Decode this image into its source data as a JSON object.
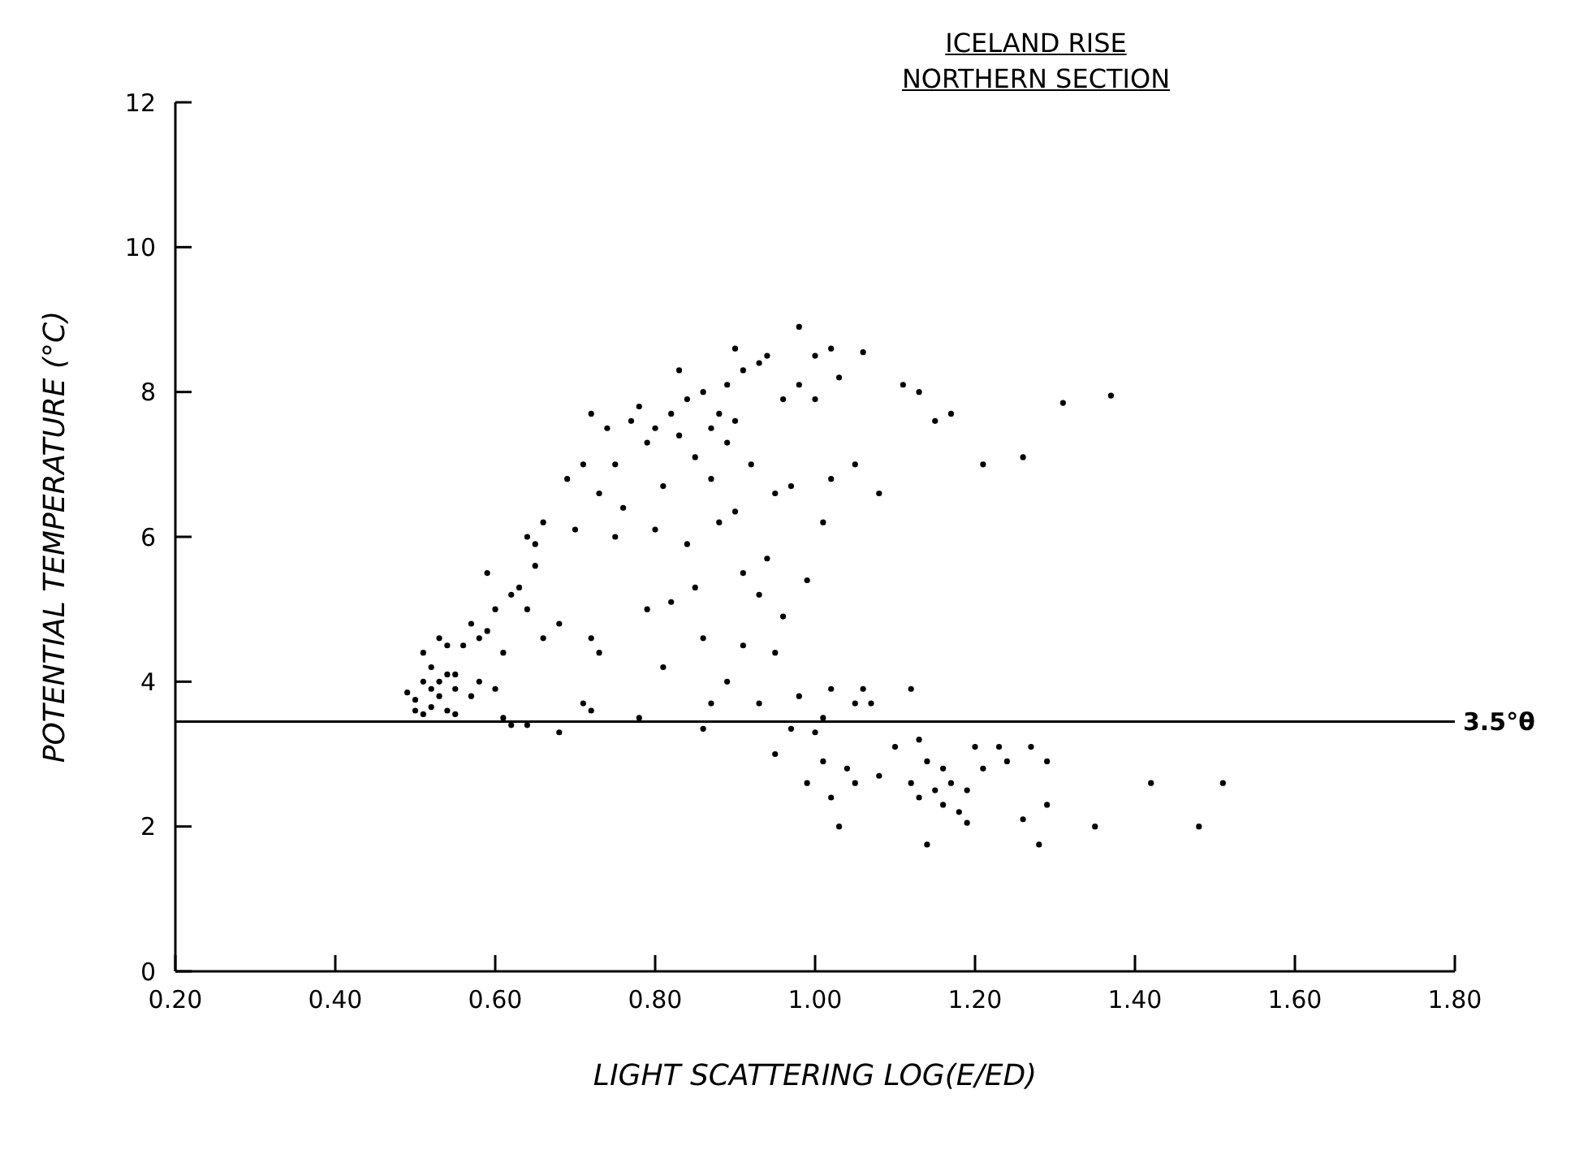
{
  "chart_data": {
    "type": "scatter",
    "title": "ICELAND RISE",
    "subtitle": "NORTHERN SECTION",
    "xlabel": "LIGHT SCATTERING    LOG(E/ED)",
    "ylabel": "POTENTIAL TEMPERATURE (°C)",
    "marker": "circle",
    "xlim": [
      0.2,
      1.8
    ],
    "xticks": [
      {
        "value": 0.2,
        "label": "0.20"
      },
      {
        "value": 0.4,
        "label": "0.40"
      },
      {
        "value": 0.6,
        "label": "0.60"
      },
      {
        "value": 0.8,
        "label": "0.80"
      },
      {
        "value": 1.0,
        "label": "1.00"
      },
      {
        "value": 1.2,
        "label": "1.20"
      },
      {
        "value": 1.4,
        "label": "1.40"
      },
      {
        "value": 1.6,
        "label": "1.60"
      },
      {
        "value": 1.8,
        "label": "1.80"
      }
    ],
    "ylim": [
      0,
      12
    ],
    "yticks": [
      0,
      2,
      4,
      6,
      8,
      10,
      12
    ],
    "ref_lines": [
      {
        "axis": "y",
        "value": 3.45,
        "label": "3.5°θ",
        "color": "#000000"
      }
    ],
    "series": [
      {
        "color": "#000000",
        "x": [
          0.49,
          0.5,
          0.5,
          0.51,
          0.51,
          0.51,
          0.52,
          0.52,
          0.52,
          0.53,
          0.53,
          0.53,
          0.54,
          0.54,
          0.54,
          0.55,
          0.55,
          0.55,
          0.56,
          0.57,
          0.57,
          0.58,
          0.58,
          0.59,
          0.59,
          0.6,
          0.6,
          0.61,
          0.61,
          0.62,
          0.62,
          0.63,
          0.64,
          0.64,
          0.64,
          0.65,
          0.65,
          0.66,
          0.66,
          0.68,
          0.68,
          0.69,
          0.7,
          0.71,
          0.71,
          0.72,
          0.72,
          0.72,
          0.73,
          0.73,
          0.74,
          0.75,
          0.75,
          0.76,
          0.77,
          0.78,
          0.78,
          0.79,
          0.79,
          0.8,
          0.8,
          0.81,
          0.81,
          0.82,
          0.82,
          0.83,
          0.83,
          0.84,
          0.84,
          0.85,
          0.85,
          0.86,
          0.86,
          0.86,
          0.87,
          0.87,
          0.87,
          0.88,
          0.88,
          0.89,
          0.89,
          0.89,
          0.9,
          0.9,
          0.9,
          0.91,
          0.91,
          0.91,
          0.92,
          0.93,
          0.93,
          0.93,
          0.94,
          0.94,
          0.95,
          0.95,
          0.95,
          0.96,
          0.96,
          0.97,
          0.97,
          0.98,
          0.98,
          0.98,
          0.99,
          0.99,
          1.0,
          1.0,
          1.0,
          1.01,
          1.01,
          1.01,
          1.02,
          1.02,
          1.02,
          1.02,
          1.03,
          1.03,
          1.04,
          1.05,
          1.05,
          1.05,
          1.06,
          1.06,
          1.07,
          1.08,
          1.08,
          1.1,
          1.11,
          1.12,
          1.12,
          1.13,
          1.13,
          1.13,
          1.14,
          1.14,
          1.15,
          1.15,
          1.16,
          1.16,
          1.17,
          1.17,
          1.18,
          1.19,
          1.19,
          1.2,
          1.21,
          1.21,
          1.23,
          1.24,
          1.26,
          1.26,
          1.27,
          1.28,
          1.29,
          1.29,
          1.31,
          1.35,
          1.37,
          1.42,
          1.48,
          1.51
        ],
        "values": [
          3.85,
          3.6,
          3.75,
          4.0,
          4.4,
          3.55,
          4.2,
          3.9,
          3.65,
          4.6,
          3.8,
          4.0,
          3.6,
          4.1,
          4.5,
          3.55,
          4.1,
          3.9,
          4.5,
          3.8,
          4.8,
          4.0,
          4.6,
          5.5,
          4.7,
          3.9,
          5.0,
          3.5,
          4.4,
          3.4,
          5.2,
          5.3,
          3.4,
          6.0,
          5.0,
          5.6,
          5.9,
          4.6,
          6.2,
          3.3,
          4.8,
          6.8,
          6.1,
          7.0,
          3.7,
          3.6,
          4.6,
          7.7,
          4.4,
          6.6,
          7.5,
          7.0,
          6.0,
          6.4,
          7.6,
          7.8,
          3.5,
          5.0,
          7.3,
          7.5,
          6.1,
          4.2,
          6.7,
          7.7,
          5.1,
          8.3,
          7.4,
          5.9,
          7.9,
          7.1,
          5.3,
          8.0,
          4.6,
          3.35,
          7.5,
          3.7,
          6.8,
          7.7,
          6.2,
          8.1,
          7.3,
          4.0,
          8.6,
          7.6,
          6.35,
          8.3,
          4.5,
          5.5,
          7.0,
          8.4,
          3.7,
          5.2,
          8.5,
          5.7,
          4.4,
          3.0,
          6.6,
          7.9,
          4.9,
          6.7,
          3.35,
          8.9,
          3.8,
          8.1,
          5.4,
          2.6,
          8.5,
          3.3,
          7.9,
          3.5,
          6.2,
          2.9,
          8.6,
          3.9,
          2.4,
          6.8,
          2.0,
          8.2,
          2.8,
          3.7,
          7.0,
          2.6,
          8.55,
          3.9,
          3.7,
          6.6,
          2.7,
          3.1,
          8.1,
          3.9,
          2.6,
          2.4,
          3.2,
          8.0,
          1.75,
          2.9,
          2.5,
          7.6,
          2.3,
          2.8,
          2.6,
          7.7,
          2.2,
          2.5,
          2.05,
          3.1,
          7.0,
          2.8,
          3.1,
          2.9,
          2.1,
          7.1,
          3.1,
          1.75,
          2.9,
          2.3,
          7.85,
          2.0,
          7.95,
          2.6,
          2.0,
          2.6
        ]
      }
    ]
  }
}
